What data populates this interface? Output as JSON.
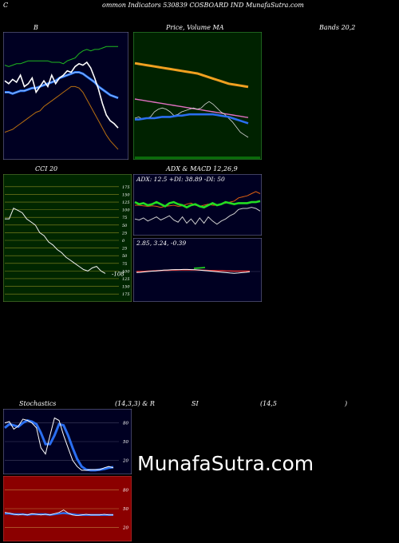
{
  "header": {
    "title": "ommon  Indicators 530839 COSBOARD IND MunafaSutra.com",
    "left_letter": "C"
  },
  "labels": {
    "b": "B",
    "price_ma": "Price,  Volume  MA",
    "bands": "Bands 20,2",
    "cci": "CCI 20",
    "adx_macd": "ADX  & MACD 12,26,9",
    "adx_values": "ADX: 12.5  +DI: 38.89 -DI: 50",
    "macd_values": "2.85,  3.24,  -0.39",
    "stoch": "Stochastics",
    "stoch_params": "(14,3,3) & R",
    "si": "SI",
    "rsi_params": "(14,5",
    "rsi_close": ")"
  },
  "brand": "MunafaSutra.com",
  "colors": {
    "navy": "#000022",
    "green_panel": "#002200",
    "cci_panel": "#002600",
    "red_panel": "#8b0000",
    "price": "#ffffff",
    "upper": "#1fb81f",
    "mid": "#1e6ef0",
    "lower": "#b86f10",
    "ma_orange": "#f0a020",
    "ma_pink": "#e070c0",
    "blue": "#2a6ef0",
    "di_plus": "#22dd22",
    "di_minus": "#e06010"
  },
  "chart_data": [
    {
      "name": "bollinger",
      "type": "line",
      "series": [
        {
          "key": "price",
          "values": [
            62,
            64,
            61,
            63,
            58,
            66,
            64,
            60,
            70,
            66,
            62,
            66,
            58,
            64,
            60,
            58,
            55,
            56,
            52,
            50,
            51,
            49,
            53,
            60,
            68,
            78,
            86,
            90,
            92,
            95
          ]
        },
        {
          "key": "upper",
          "values": [
            51,
            52,
            51,
            50,
            50,
            49,
            48,
            48,
            48,
            48,
            48,
            48,
            49,
            49,
            49,
            50,
            48,
            47,
            46,
            43,
            41,
            40,
            41,
            40,
            40,
            39,
            38,
            38,
            38,
            38
          ]
        },
        {
          "key": "mid",
          "values": [
            70,
            70,
            71,
            70,
            69,
            69,
            68,
            67,
            67,
            66,
            65,
            64,
            63,
            62,
            60,
            59,
            58,
            57,
            56,
            56,
            57,
            59,
            61,
            63,
            66,
            68,
            70,
            72,
            73,
            74
          ]
        },
        {
          "key": "lower",
          "values": [
            98,
            97,
            96,
            94,
            92,
            90,
            88,
            86,
            84,
            83,
            80,
            78,
            76,
            74,
            72,
            70,
            68,
            66,
            66,
            67,
            70,
            75,
            80,
            85,
            90,
            95,
            100,
            104,
            107,
            110
          ]
        }
      ],
      "ylim": [
        30,
        115
      ]
    },
    {
      "name": "price-volume-ma",
      "type": "line",
      "series": [
        {
          "key": "ma_orange",
          "values": [
            12,
            12.5,
            13,
            13.5,
            14,
            14.5,
            15,
            15.5,
            16,
            16.5,
            17,
            17.5,
            18,
            18.5,
            19,
            19.5,
            20,
            21,
            22,
            23,
            24,
            25,
            26,
            27,
            28,
            28.5,
            29,
            29.5,
            30,
            30.5
          ]
        },
        {
          "key": "ma_pink",
          "values": [
            40,
            40.5,
            41,
            41.5,
            42,
            42.5,
            43,
            43.5,
            44,
            44.5,
            45,
            45.5,
            46,
            46.5,
            47,
            47.5,
            48,
            48.5,
            49,
            49.5,
            50,
            50.5,
            51,
            51.5,
            52,
            52.5,
            53,
            53.5,
            54,
            54.5
          ]
        },
        {
          "key": "price",
          "values": [
            55,
            54,
            56,
            55,
            54,
            50,
            48,
            47,
            48,
            50,
            53,
            52,
            50,
            49,
            48,
            47,
            48,
            47,
            44,
            42,
            44,
            47,
            50,
            52,
            55,
            58,
            62,
            66,
            68,
            70
          ]
        },
        {
          "key": "mid",
          "values": [
            56,
            56,
            55.5,
            55,
            55,
            55,
            54.5,
            54,
            54,
            54,
            53.5,
            53,
            53,
            52.5,
            52,
            52,
            52,
            52,
            52,
            52,
            52,
            52.5,
            53,
            53.5,
            54,
            55,
            56,
            57,
            58,
            59
          ]
        }
      ],
      "ylim": [
        0,
        100
      ]
    },
    {
      "name": "cci",
      "type": "line",
      "values": [
        70,
        70,
        105,
        98,
        90,
        70,
        60,
        50,
        25,
        15,
        -5,
        -15,
        -30,
        -40,
        -55,
        -65,
        -75,
        -85,
        -95,
        -100,
        -90,
        -85,
        -100,
        -108
      ],
      "last_label": "-108",
      "ticks": [
        175,
        150,
        125,
        100,
        75,
        50,
        25,
        0,
        -25,
        -50,
        -75,
        -100,
        -125,
        -150,
        -175
      ],
      "tick_labels": [
        "175",
        "150",
        "125",
        "100",
        "75",
        "50",
        "25",
        "0",
        "25",
        "50",
        "75",
        "100",
        "125",
        "150",
        "175"
      ],
      "ylim": [
        -185,
        185
      ]
    },
    {
      "name": "adx",
      "type": "line",
      "series": [
        {
          "key": "adx_white",
          "values": [
            30,
            28,
            32,
            26,
            30,
            34,
            28,
            32,
            36,
            28,
            24,
            34,
            22,
            30,
            20,
            32,
            22,
            34,
            26,
            20,
            26,
            30,
            36,
            40,
            48,
            50,
            50,
            52,
            50,
            45
          ]
        },
        {
          "key": "di_plus",
          "values": [
            62,
            58,
            60,
            56,
            58,
            62,
            58,
            54,
            60,
            62,
            58,
            56,
            52,
            56,
            58,
            54,
            52,
            56,
            60,
            56,
            58,
            62,
            60,
            58,
            60,
            60,
            60,
            62,
            62,
            64
          ]
        },
        {
          "key": "di_minus",
          "values": [
            56,
            56,
            55,
            54,
            55,
            54,
            52,
            54,
            55,
            56,
            54,
            55,
            58,
            60,
            56,
            54,
            56,
            58,
            56,
            56,
            58,
            60,
            62,
            64,
            70,
            72,
            74,
            78,
            82,
            78
          ]
        }
      ],
      "ylim": [
        0,
        100
      ]
    },
    {
      "name": "macd",
      "type": "line",
      "series": [
        {
          "key": "macd",
          "values": [
            2.5,
            2.6,
            2.8,
            3.0,
            3.2,
            3.3,
            3.5,
            3.7,
            3.8,
            3.9,
            4.0,
            4.0,
            4.1,
            4.1,
            4.0,
            3.9,
            3.8,
            3.6,
            3.4,
            3.2,
            3.0,
            2.8,
            2.6,
            2.4,
            2.2,
            2.1,
            2.2,
            2.4,
            2.6,
            2.85
          ]
        },
        {
          "key": "signal",
          "values": [
            3.0,
            3.0,
            3.1,
            3.2,
            3.3,
            3.4,
            3.5,
            3.6,
            3.6,
            3.7,
            3.7,
            3.8,
            3.8,
            3.8,
            3.8,
            3.8,
            3.7,
            3.7,
            3.6,
            3.5,
            3.5,
            3.4,
            3.4,
            3.3,
            3.3,
            3.2,
            3.2,
            3.2,
            3.2,
            3.24
          ]
        }
      ],
      "ylim": [
        -10,
        10
      ]
    },
    {
      "name": "stochastics",
      "type": "line",
      "series": [
        {
          "key": "k",
          "values": [
            80,
            82,
            70,
            75,
            86,
            84,
            80,
            72,
            40,
            30,
            60,
            88,
            84,
            60,
            40,
            20,
            10,
            4,
            4,
            5,
            5,
            5,
            8,
            10,
            8
          ]
        },
        {
          "key": "d",
          "values": [
            72,
            78,
            76,
            74,
            80,
            84,
            82,
            78,
            64,
            46,
            46,
            60,
            78,
            76,
            60,
            40,
            22,
            10,
            5,
            4,
            4,
            5,
            6,
            8,
            9
          ]
        }
      ],
      "ticks": [
        80,
        50,
        20
      ],
      "tick_labels": [
        "80",
        "50",
        "20"
      ],
      "ylim": [
        0,
        100
      ]
    },
    {
      "name": "rsi",
      "type": "line",
      "series": [
        {
          "key": "rsi",
          "values": [
            44,
            43,
            41,
            40,
            41,
            40,
            42,
            41,
            40,
            41,
            40,
            42,
            44,
            48,
            43,
            40,
            39,
            40,
            41,
            40,
            40,
            40,
            41,
            40,
            40
          ]
        },
        {
          "key": "rsi_smooth",
          "values": [
            42,
            42,
            41,
            41,
            41,
            40,
            41,
            41,
            41,
            41,
            40,
            41,
            42,
            43,
            42,
            41,
            40,
            40,
            40,
            40,
            40,
            40,
            40,
            40,
            40
          ]
        }
      ],
      "ticks": [
        80,
        50,
        20
      ],
      "tick_labels": [
        "80",
        "50",
        "20"
      ],
      "ylim": [
        0,
        100
      ]
    }
  ]
}
